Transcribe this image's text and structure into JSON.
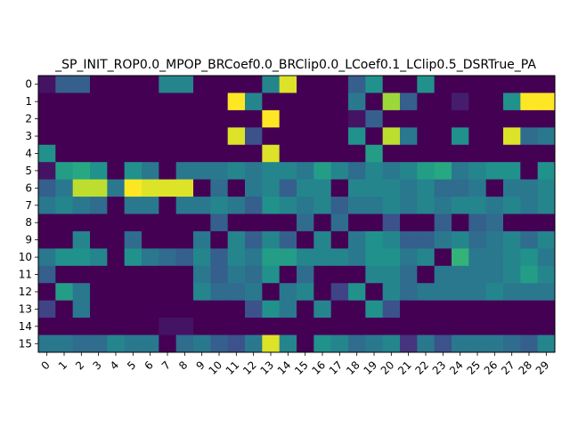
{
  "chart_data": {
    "type": "heatmap",
    "title": "_SP_INIT_ROP0.0_MPOP_BRCoef0.0_BRClip0.0_LCoef0.1_LClip0.5_DSRTrue_PA",
    "xlabel": "",
    "ylabel": "",
    "colormap": "viridis",
    "value_range": [
      0,
      1
    ],
    "x_tick_labels": [
      "0",
      "1",
      "2",
      "3",
      "4",
      "5",
      "6",
      "7",
      "8",
      "9",
      "10",
      "11",
      "12",
      "13",
      "14",
      "15",
      "16",
      "17",
      "18",
      "19",
      "20",
      "21",
      "22",
      "23",
      "24",
      "25",
      "26",
      "27",
      "28",
      "29"
    ],
    "y_tick_labels": [
      "0",
      "1",
      "2",
      "3",
      "4",
      "5",
      "6",
      "7",
      "8",
      "9",
      "10",
      "11",
      "12",
      "13",
      "14",
      "15"
    ],
    "values": [
      [
        0.05,
        0.3,
        0.3,
        0.0,
        0.0,
        0.0,
        0.0,
        0.45,
        0.45,
        0.0,
        0.0,
        0.0,
        0.0,
        0.45,
        0.95,
        0.0,
        0.0,
        0.0,
        0.3,
        0.5,
        0.0,
        0.0,
        0.5,
        0.0,
        0.0,
        0.0,
        0.0,
        0.0,
        0.0,
        0.0
      ],
      [
        0.0,
        0.0,
        0.0,
        0.0,
        0.0,
        0.0,
        0.0,
        0.0,
        0.0,
        0.0,
        0.0,
        1.0,
        0.45,
        0.0,
        0.0,
        0.0,
        0.0,
        0.0,
        0.4,
        0.0,
        0.85,
        0.3,
        0.0,
        0.0,
        0.08,
        0.0,
        0.0,
        0.5,
        1.0,
        1.0
      ],
      [
        0.0,
        0.0,
        0.0,
        0.0,
        0.0,
        0.0,
        0.0,
        0.0,
        0.0,
        0.0,
        0.0,
        0.0,
        0.0,
        1.0,
        0.0,
        0.0,
        0.0,
        0.0,
        0.05,
        0.3,
        0.0,
        0.0,
        0.0,
        0.0,
        0.0,
        0.0,
        0.0,
        0.0,
        0.0,
        0.0
      ],
      [
        0.0,
        0.0,
        0.0,
        0.0,
        0.0,
        0.0,
        0.0,
        0.0,
        0.0,
        0.0,
        0.0,
        0.95,
        0.25,
        0.0,
        0.0,
        0.0,
        0.0,
        0.0,
        0.5,
        0.0,
        0.9,
        0.4,
        0.0,
        0.0,
        0.5,
        0.0,
        0.0,
        0.95,
        0.35,
        0.4
      ],
      [
        0.5,
        0.0,
        0.0,
        0.0,
        0.0,
        0.0,
        0.0,
        0.0,
        0.0,
        0.0,
        0.0,
        0.0,
        0.0,
        0.95,
        0.0,
        0.0,
        0.0,
        0.0,
        0.0,
        0.55,
        0.0,
        0.0,
        0.0,
        0.0,
        0.0,
        0.0,
        0.0,
        0.0,
        0.0,
        0.0
      ],
      [
        0.05,
        0.55,
        0.6,
        0.5,
        0.0,
        0.5,
        0.4,
        0.0,
        0.4,
        0.4,
        0.4,
        0.45,
        0.4,
        0.45,
        0.45,
        0.4,
        0.55,
        0.45,
        0.35,
        0.45,
        0.4,
        0.45,
        0.55,
        0.6,
        0.4,
        0.45,
        0.5,
        0.5,
        0.0,
        0.5
      ],
      [
        0.3,
        0.4,
        0.9,
        0.9,
        0.4,
        1.0,
        0.95,
        0.95,
        0.95,
        0.0,
        0.35,
        0.0,
        0.4,
        0.45,
        0.3,
        0.45,
        0.45,
        0.0,
        0.45,
        0.45,
        0.45,
        0.4,
        0.45,
        0.35,
        0.35,
        0.4,
        0.0,
        0.4,
        0.4,
        0.45
      ],
      [
        0.4,
        0.45,
        0.4,
        0.35,
        0.0,
        0.4,
        0.4,
        0.0,
        0.4,
        0.4,
        0.45,
        0.4,
        0.3,
        0.5,
        0.45,
        0.4,
        0.45,
        0.3,
        0.4,
        0.4,
        0.45,
        0.4,
        0.45,
        0.4,
        0.45,
        0.45,
        0.4,
        0.45,
        0.4,
        0.45
      ],
      [
        0.0,
        0.0,
        0.0,
        0.0,
        0.0,
        0.0,
        0.0,
        0.0,
        0.0,
        0.0,
        0.3,
        0.0,
        0.0,
        0.0,
        0.0,
        0.35,
        0.0,
        0.35,
        0.0,
        0.0,
        0.25,
        0.0,
        0.0,
        0.3,
        0.0,
        0.3,
        0.35,
        0.0,
        0.0,
        0.0
      ],
      [
        0.0,
        0.0,
        0.45,
        0.0,
        0.0,
        0.35,
        0.0,
        0.0,
        0.0,
        0.4,
        0.0,
        0.45,
        0.3,
        0.45,
        0.3,
        0.0,
        0.45,
        0.0,
        0.4,
        0.5,
        0.45,
        0.3,
        0.3,
        0.4,
        0.45,
        0.35,
        0.4,
        0.45,
        0.35,
        0.45
      ],
      [
        0.4,
        0.5,
        0.5,
        0.45,
        0.0,
        0.5,
        0.4,
        0.35,
        0.3,
        0.45,
        0.3,
        0.45,
        0.4,
        0.55,
        0.55,
        0.45,
        0.45,
        0.45,
        0.4,
        0.5,
        0.5,
        0.4,
        0.45,
        0.0,
        0.65,
        0.4,
        0.4,
        0.45,
        0.5,
        0.4
      ],
      [
        0.3,
        0.0,
        0.0,
        0.0,
        0.0,
        0.0,
        0.0,
        0.0,
        0.0,
        0.4,
        0.3,
        0.4,
        0.35,
        0.5,
        0.0,
        0.35,
        0.0,
        0.0,
        0.0,
        0.45,
        0.45,
        0.35,
        0.0,
        0.4,
        0.4,
        0.4,
        0.4,
        0.45,
        0.55,
        0.45
      ],
      [
        0.0,
        0.55,
        0.4,
        0.0,
        0.0,
        0.0,
        0.0,
        0.0,
        0.0,
        0.45,
        0.35,
        0.35,
        0.4,
        0.0,
        0.4,
        0.45,
        0.0,
        0.2,
        0.5,
        0.0,
        0.45,
        0.35,
        0.4,
        0.4,
        0.4,
        0.4,
        0.45,
        0.4,
        0.4,
        0.4
      ],
      [
        0.2,
        0.0,
        0.4,
        0.0,
        0.0,
        0.0,
        0.0,
        0.0,
        0.0,
        0.0,
        0.0,
        0.0,
        0.25,
        0.5,
        0.4,
        0.0,
        0.45,
        0.0,
        0.0,
        0.5,
        0.25,
        0.0,
        0.0,
        0.0,
        0.0,
        0.0,
        0.0,
        0.0,
        0.0,
        0.0
      ],
      [
        0.0,
        0.0,
        0.0,
        0.0,
        0.0,
        0.0,
        0.0,
        0.05,
        0.05,
        0.0,
        0.0,
        0.0,
        0.0,
        0.0,
        0.0,
        0.0,
        0.0,
        0.0,
        0.0,
        0.0,
        0.0,
        0.0,
        0.0,
        0.0,
        0.0,
        0.0,
        0.0,
        0.0,
        0.0,
        0.0
      ],
      [
        0.4,
        0.4,
        0.35,
        0.35,
        0.45,
        0.4,
        0.4,
        0.0,
        0.35,
        0.4,
        0.3,
        0.25,
        0.4,
        0.95,
        0.45,
        0.0,
        0.5,
        0.45,
        0.35,
        0.4,
        0.45,
        0.15,
        0.4,
        0.25,
        0.4,
        0.4,
        0.4,
        0.35,
        0.3,
        0.45
      ]
    ]
  }
}
